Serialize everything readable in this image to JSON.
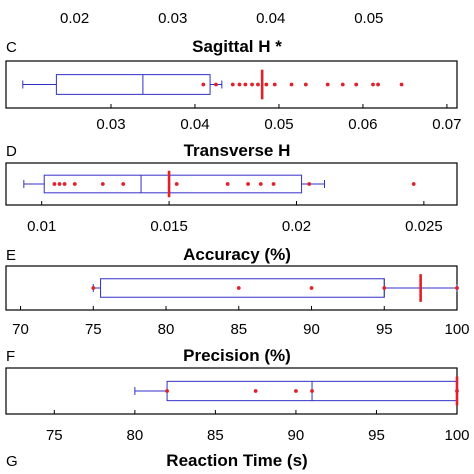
{
  "chart_data": [
    {
      "type": "box",
      "panel_letter": "",
      "title": "",
      "xlim": [
        0.013,
        0.059
      ],
      "ticks": [
        "0.02",
        "0.03",
        "0.04",
        "0.05"
      ],
      "tick_values": [
        0.02,
        0.03,
        0.04,
        0.05
      ],
      "whiskers": [],
      "box": [],
      "median": null,
      "mean": null,
      "outliers": []
    },
    {
      "type": "box",
      "panel_letter": "C",
      "title": "Sagittal H *",
      "xlim": [
        0.0175,
        0.0712
      ],
      "ticks": [
        "0.03",
        "0.04",
        "0.05",
        "0.06",
        "0.07"
      ],
      "tick_values": [
        0.03,
        0.04,
        0.05,
        0.06,
        0.07
      ],
      "whiskers": [
        0.0195,
        0.0432
      ],
      "box": [
        0.0235,
        0.0418
      ],
      "median": 0.0338,
      "mean": 0.048,
      "outliers": [
        0.041,
        0.0425,
        0.0445,
        0.0453,
        0.046,
        0.0468,
        0.0475,
        0.0485,
        0.0495,
        0.0515,
        0.0532,
        0.0558,
        0.0576,
        0.0592,
        0.0612,
        0.0618,
        0.0646
      ]
    },
    {
      "type": "box",
      "panel_letter": "D",
      "title": "Transverse H",
      "xlim": [
        0.0086,
        0.0263
      ],
      "ticks": [
        "0.01",
        "0.015",
        "0.02",
        "0.025"
      ],
      "tick_values": [
        0.01,
        0.015,
        0.02,
        0.025
      ],
      "whiskers": [
        0.0093,
        0.0211
      ],
      "box": [
        0.0101,
        0.0202
      ],
      "median": 0.0139,
      "mean": 0.015,
      "outliers": [
        0.0105,
        0.0107,
        0.0109,
        0.0113,
        0.0124,
        0.0132,
        0.0153,
        0.0173,
        0.0181,
        0.0186,
        0.0191,
        0.0205,
        0.0246
      ]
    },
    {
      "type": "box",
      "panel_letter": "E",
      "title": "Accuracy (%)",
      "xlim": [
        69,
        100
      ],
      "ticks": [
        "70",
        "75",
        "80",
        "85",
        "90",
        "95",
        "100"
      ],
      "tick_values": [
        70,
        75,
        80,
        85,
        90,
        95,
        100
      ],
      "whiskers": [
        75,
        100
      ],
      "box": [
        75.5,
        95
      ],
      "median": 95,
      "mean": 97.5,
      "outliers": [
        75,
        85,
        90,
        95,
        100
      ]
    },
    {
      "type": "box",
      "panel_letter": "F",
      "title": "Precision (%)",
      "xlim": [
        72,
        100
      ],
      "ticks": [
        "75",
        "80",
        "85",
        "90",
        "95",
        "100"
      ],
      "tick_values": [
        75,
        80,
        85,
        90,
        95,
        100
      ],
      "whiskers": [
        80,
        100
      ],
      "box": [
        82,
        100
      ],
      "median": 91,
      "mean": 100,
      "outliers": [
        82,
        87.5,
        90,
        91,
        100
      ]
    },
    {
      "type": "box",
      "panel_letter": "G",
      "title": "Reaction Time (s)",
      "xlim": [
        0,
        1
      ],
      "ticks": [],
      "tick_values": [],
      "whiskers": [],
      "box": [],
      "median": null,
      "mean": null,
      "outliers": []
    }
  ],
  "colors": {
    "box": "#3030c8",
    "point": "#e0202a",
    "mean": "#e0202a"
  }
}
